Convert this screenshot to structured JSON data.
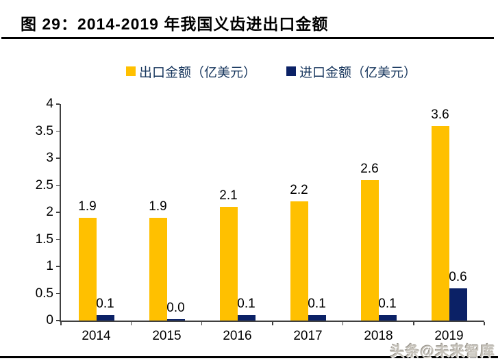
{
  "figure": {
    "title": "图 29：2014-2019 年我国义齿进出口金额",
    "watermark": "头条@未来智库"
  },
  "colors": {
    "export_bar": "#FFC000",
    "import_bar": "#0B2166",
    "legend_text": "#17365D",
    "axis_line": "#404040",
    "title_text": "#000000"
  },
  "chart_data": {
    "type": "bar",
    "title": "图 29：2014-2019 年我国义齿进出口金额",
    "categories": [
      "2014",
      "2015",
      "2016",
      "2017",
      "2018",
      "2019"
    ],
    "series": [
      {
        "name": "出口金额（亿美元）",
        "color": "#FFC000",
        "values": [
          1.9,
          1.9,
          2.1,
          2.2,
          2.6,
          3.6
        ]
      },
      {
        "name": "进口金额（亿美元）",
        "color": "#0B2166",
        "values": [
          0.1,
          0.0,
          0.1,
          0.1,
          0.1,
          0.6
        ]
      }
    ],
    "xlabel": "",
    "ylabel": "",
    "ylim": [
      0,
      4
    ],
    "ytick_step": 0.5,
    "yticks": [
      "0",
      "0.5",
      "1",
      "1.5",
      "2",
      "2.5",
      "3",
      "3.5",
      "4"
    ],
    "grid": false,
    "legend_position": "top-center",
    "data_labels": true
  }
}
